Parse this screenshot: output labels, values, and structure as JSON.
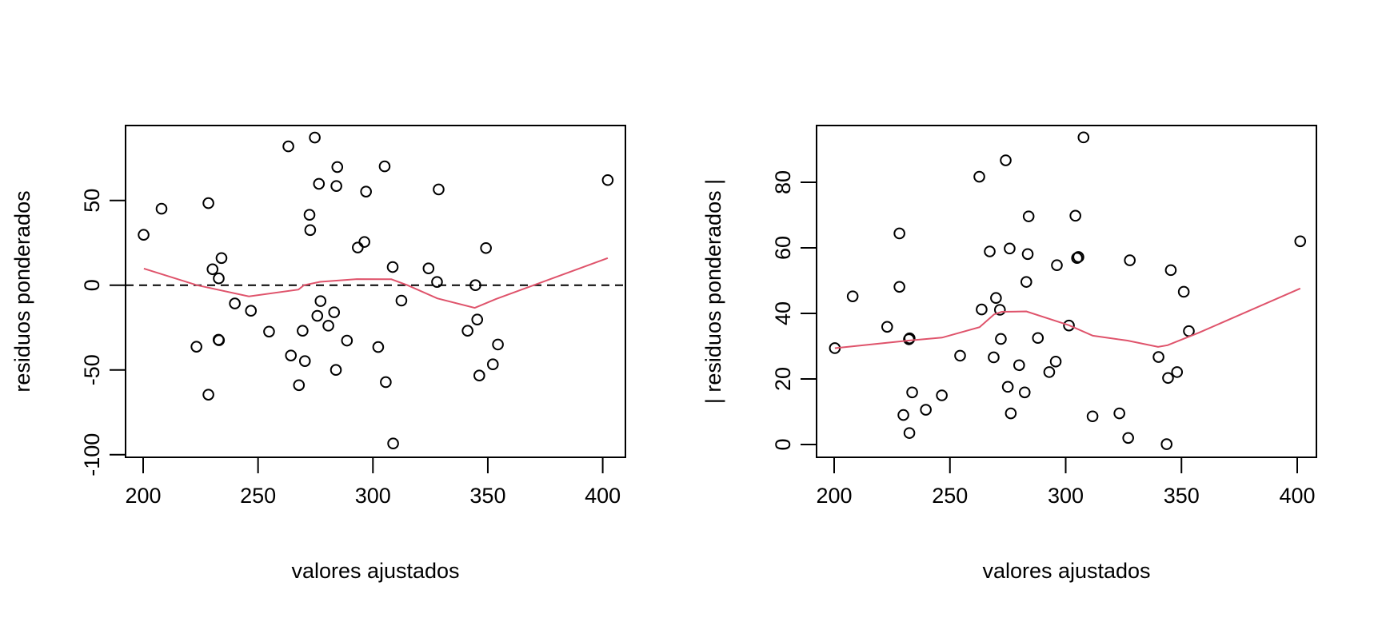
{
  "colors": {
    "points": "#000000",
    "smooth": "#DF536B",
    "reference": "#000000",
    "background": "#FFFFFF"
  },
  "chart_data": [
    {
      "type": "scatter",
      "title": "",
      "xlabel": "valores ajustados",
      "ylabel": "residuos ponderados",
      "xlim": [
        192,
        413
      ],
      "ylim": [
        -103,
        95
      ],
      "xticks": [
        200,
        250,
        300,
        350,
        400
      ],
      "yticks": [
        -100,
        -50,
        0,
        50
      ],
      "ytick_labels": [
        "-100",
        "-50",
        "0",
        "50"
      ],
      "grid": false,
      "legend": null,
      "reference_line": {
        "y": 0,
        "style": "dashed"
      },
      "points": [
        [
          200.2,
          29.7
        ],
        [
          208.0,
          45.1
        ],
        [
          228.4,
          48.4
        ],
        [
          234.1,
          16.0
        ],
        [
          230.2,
          9.4
        ],
        [
          232.9,
          4.0
        ],
        [
          239.9,
          -10.8
        ],
        [
          246.9,
          -15.1
        ],
        [
          254.8,
          -27.4
        ],
        [
          232.8,
          -32.2
        ],
        [
          233.0,
          -32.5
        ],
        [
          223.2,
          -36.3
        ],
        [
          228.4,
          -64.6
        ],
        [
          263.2,
          81.9
        ],
        [
          274.7,
          87.1
        ],
        [
          276.5,
          59.8
        ],
        [
          284.5,
          69.7
        ],
        [
          305.1,
          70.1
        ],
        [
          284.1,
          58.5
        ],
        [
          297.0,
          55.2
        ],
        [
          328.6,
          56.5
        ],
        [
          272.4,
          41.5
        ],
        [
          272.7,
          32.5
        ],
        [
          296.3,
          25.5
        ],
        [
          293.4,
          22.2
        ],
        [
          308.6,
          10.7
        ],
        [
          324.2,
          9.9
        ],
        [
          327.9,
          1.9
        ],
        [
          344.6,
          0.0
        ],
        [
          349.2,
          21.9
        ],
        [
          312.4,
          -9.1
        ],
        [
          277.2,
          -9.4
        ],
        [
          275.8,
          -18.1
        ],
        [
          283.1,
          -16.0
        ],
        [
          280.6,
          -23.9
        ],
        [
          288.7,
          -32.7
        ],
        [
          302.3,
          -36.5
        ],
        [
          283.9,
          -50.0
        ],
        [
          305.6,
          -57.2
        ],
        [
          345.4,
          -20.3
        ],
        [
          341.2,
          -26.9
        ],
        [
          346.3,
          -53.3
        ],
        [
          308.8,
          -93.4
        ],
        [
          402.2,
          62.0
        ],
        [
          354.4,
          -35.0
        ],
        [
          352.2,
          -46.7
        ],
        [
          269.4,
          -26.9
        ],
        [
          264.3,
          -41.5
        ],
        [
          270.4,
          -44.8
        ],
        [
          267.8,
          -59.0
        ]
      ],
      "smooth_line": [
        [
          200.3,
          9.8
        ],
        [
          223.4,
          0.0
        ],
        [
          246.0,
          -6.6
        ],
        [
          267.6,
          -2.6
        ],
        [
          270.0,
          0.0
        ],
        [
          277.0,
          2.0
        ],
        [
          293.0,
          3.6
        ],
        [
          308.0,
          3.5
        ],
        [
          315.0,
          0.0
        ],
        [
          328.0,
          -7.8
        ],
        [
          344.3,
          -13.4
        ],
        [
          353.5,
          -8.2
        ],
        [
          402.2,
          16.0
        ]
      ]
    },
    {
      "type": "scatter",
      "title": "",
      "xlabel": "valores ajustados",
      "ylabel": "| residuos ponderados |",
      "xlim": [
        192,
        412
      ],
      "ylim": [
        -4,
        97
      ],
      "xticks": [
        200,
        250,
        300,
        350,
        400
      ],
      "yticks": [
        0,
        20,
        40,
        60,
        80
      ],
      "ytick_labels": [
        "0",
        "20",
        "40",
        "60",
        "80"
      ],
      "grid": false,
      "legend": null,
      "points": [
        [
          200.3,
          29.4
        ],
        [
          208.0,
          45.2
        ],
        [
          228.2,
          64.4
        ],
        [
          228.2,
          48.1
        ],
        [
          222.9,
          35.9
        ],
        [
          232.3,
          32.1
        ],
        [
          232.6,
          32.4
        ],
        [
          233.7,
          15.9
        ],
        [
          229.9,
          9.0
        ],
        [
          239.6,
          10.6
        ],
        [
          232.5,
          3.5
        ],
        [
          246.5,
          15.0
        ],
        [
          254.4,
          27.1
        ],
        [
          262.7,
          81.7
        ],
        [
          274.1,
          86.7
        ],
        [
          267.2,
          58.9
        ],
        [
          275.8,
          59.8
        ],
        [
          263.7,
          41.2
        ],
        [
          269.9,
          44.7
        ],
        [
          271.6,
          41.1
        ],
        [
          272.0,
          32.2
        ],
        [
          268.9,
          26.6
        ],
        [
          279.9,
          24.2
        ],
        [
          275.0,
          17.6
        ],
        [
          282.3,
          15.9
        ],
        [
          276.3,
          9.5
        ],
        [
          307.7,
          93.7
        ],
        [
          284.0,
          69.6
        ],
        [
          304.2,
          69.8
        ],
        [
          283.6,
          58.1
        ],
        [
          304.9,
          56.9
        ],
        [
          296.2,
          54.7
        ],
        [
          327.7,
          56.2
        ],
        [
          345.4,
          53.2
        ],
        [
          351.0,
          46.6
        ],
        [
          283.0,
          49.6
        ],
        [
          301.4,
          36.3
        ],
        [
          353.2,
          34.6
        ],
        [
          288.0,
          32.5
        ],
        [
          340.1,
          26.7
        ],
        [
          295.7,
          25.3
        ],
        [
          292.9,
          22.1
        ],
        [
          348.1,
          22.1
        ],
        [
          344.2,
          20.3
        ],
        [
          311.6,
          8.6
        ],
        [
          323.2,
          9.5
        ],
        [
          327.0,
          2.0
        ],
        [
          343.6,
          0.1
        ],
        [
          401.3,
          62.0
        ],
        [
          305.5,
          57.2
        ]
      ],
      "smooth_line": [
        [
          200.3,
          29.4
        ],
        [
          232.0,
          31.7
        ],
        [
          246.6,
          32.6
        ],
        [
          262.8,
          35.8
        ],
        [
          269.1,
          39.7
        ],
        [
          272.4,
          40.5
        ],
        [
          283.0,
          40.6
        ],
        [
          301.4,
          36.4
        ],
        [
          311.7,
          33.2
        ],
        [
          326.7,
          31.7
        ],
        [
          339.9,
          29.8
        ],
        [
          344.0,
          30.3
        ],
        [
          357.8,
          34.2
        ],
        [
          401.3,
          47.6
        ]
      ]
    }
  ]
}
